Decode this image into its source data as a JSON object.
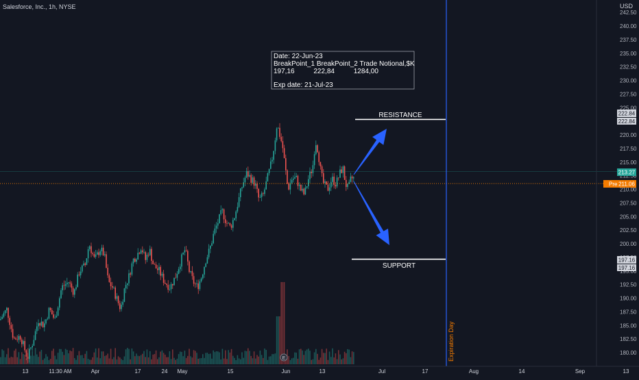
{
  "header": {
    "symbol_label": "Salesforce, Inc., 1h, NYSE",
    "currency": "USD"
  },
  "chart_data": {
    "type": "candlestick",
    "y_axis": {
      "ylim": [
        178.5,
        243.2
      ],
      "ticks": [
        "180.00",
        "182.50",
        "185.00",
        "187.50",
        "190.00",
        "192.50",
        "195.00",
        "197.50",
        "200.00",
        "202.50",
        "205.00",
        "207.50",
        "210.00",
        "212.50",
        "215.00",
        "217.50",
        "220.00",
        "222.50",
        "225.00",
        "227.50",
        "230.00",
        "232.50",
        "235.00",
        "237.50",
        "240.00",
        "242.50"
      ]
    },
    "x_axis": {
      "labels": [
        {
          "text": "13",
          "x": 37
        },
        {
          "text": "11:30 AM",
          "x": 88
        },
        {
          "text": "Apr",
          "x": 139
        },
        {
          "text": "17",
          "x": 201
        },
        {
          "text": "24",
          "x": 240
        },
        {
          "text": "May",
          "x": 266
        },
        {
          "text": "15",
          "x": 336
        },
        {
          "text": "Jun",
          "x": 417
        },
        {
          "text": "13",
          "x": 470
        },
        {
          "text": "Jul",
          "x": 557
        },
        {
          "text": "17",
          "x": 620
        },
        {
          "text": "Aug",
          "x": 691
        },
        {
          "text": "14",
          "x": 761
        },
        {
          "text": "Sep",
          "x": 846
        },
        {
          "text": "13",
          "x": 913
        }
      ]
    },
    "price_path": [
      [
        0,
        186
      ],
      [
        10,
        188
      ],
      [
        20,
        182.5
      ],
      [
        30,
        183
      ],
      [
        40,
        179
      ],
      [
        48,
        182
      ],
      [
        56,
        186
      ],
      [
        64,
        185
      ],
      [
        72,
        188
      ],
      [
        80,
        186
      ],
      [
        90,
        192
      ],
      [
        100,
        193
      ],
      [
        108,
        191
      ],
      [
        116,
        195
      ],
      [
        124,
        196
      ],
      [
        130,
        200
      ],
      [
        138,
        197
      ],
      [
        146,
        199
      ],
      [
        152,
        198
      ],
      [
        158,
        193
      ],
      [
        164,
        192
      ],
      [
        170,
        190
      ],
      [
        176,
        188
      ],
      [
        182,
        192
      ],
      [
        188,
        194
      ],
      [
        194,
        197
      ],
      [
        200,
        198
      ],
      [
        206,
        199.5
      ],
      [
        212,
        197
      ],
      [
        218,
        199
      ],
      [
        224,
        196
      ],
      [
        232,
        195
      ],
      [
        240,
        193
      ],
      [
        248,
        192
      ],
      [
        256,
        194
      ],
      [
        264,
        197
      ],
      [
        270,
        199
      ],
      [
        276,
        195
      ],
      [
        282,
        193
      ],
      [
        288,
        192
      ],
      [
        294,
        194
      ],
      [
        300,
        197
      ],
      [
        306,
        199
      ],
      [
        312,
        202
      ],
      [
        318,
        204
      ],
      [
        324,
        206
      ],
      [
        330,
        204
      ],
      [
        336,
        203
      ],
      [
        342,
        205
      ],
      [
        348,
        208
      ],
      [
        354,
        211
      ],
      [
        360,
        213
      ],
      [
        366,
        212
      ],
      [
        372,
        211
      ],
      [
        378,
        208
      ],
      [
        384,
        209
      ],
      [
        390,
        212
      ],
      [
        396,
        215
      ],
      [
        400,
        218
      ],
      [
        404,
        222
      ],
      [
        408,
        220
      ],
      [
        412,
        218
      ],
      [
        416,
        214
      ],
      [
        420,
        210
      ],
      [
        426,
        212
      ],
      [
        432,
        212
      ],
      [
        438,
        210
      ],
      [
        444,
        209
      ],
      [
        450,
        212
      ],
      [
        456,
        214
      ],
      [
        460,
        219
      ],
      [
        464,
        217
      ],
      [
        468,
        213
      ],
      [
        472,
        211
      ],
      [
        478,
        210
      ],
      [
        484,
        212
      ],
      [
        490,
        211
      ],
      [
        496,
        213
      ],
      [
        500,
        214
      ],
      [
        504,
        211
      ],
      [
        508,
        210
      ],
      [
        512,
        212
      ],
      [
        516,
        212
      ]
    ],
    "resistance": {
      "label": "RESISTANCE",
      "value": 222.84,
      "x_start": 518,
      "x_end": 650
    },
    "support": {
      "label": "SUPPORT",
      "value": 197.16,
      "x_start": 513,
      "x_end": 650
    },
    "current_price": 213.27,
    "premarket_price": 211.06,
    "premarket_label": "Pre",
    "axis_badges": {
      "resistance": "222.84",
      "support": "197.16",
      "current": "213.27",
      "premarket": "211.06"
    },
    "info_box": {
      "line1": "Date: 22-Jun-23",
      "line2": "BreakPoint_1 BreakPoint_2 Trade Notional,$K",
      "line3": "197,16          222,84          1284,00",
      "line4": "Exp date: 21-Jul-23"
    },
    "expiration": {
      "label": "Expiration Day",
      "x": 651
    },
    "colors": {
      "up": "#26a69a",
      "down": "#ef5350",
      "arrow": "#2962ff",
      "expiry_line": "#2962ff",
      "premarket": "#f57c00",
      "current": "#26a69a",
      "background": "#131722"
    }
  }
}
